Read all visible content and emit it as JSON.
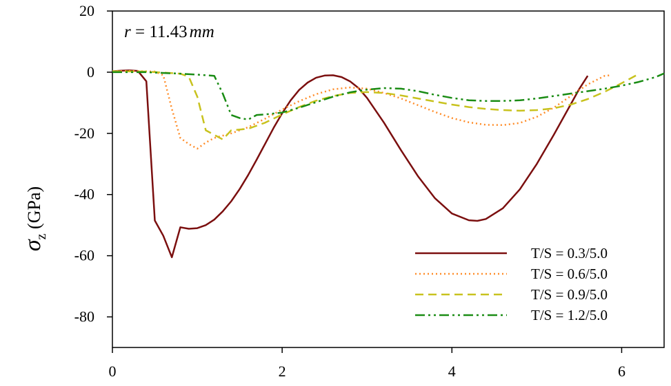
{
  "chart_data": {
    "type": "line",
    "title": "",
    "annotation": {
      "var": "r",
      "eq": " = 11.43",
      "unit": "mm"
    },
    "xlabel": "",
    "ylabel": {
      "symbol": "σ",
      "sub": "z",
      "unit": " (GPa)"
    },
    "xlim": [
      0,
      6.5
    ],
    "ylim": [
      -90,
      20
    ],
    "xticks": [
      0,
      2,
      4,
      6
    ],
    "yticks": [
      20,
      0,
      -20,
      -40,
      -60,
      -80
    ],
    "grid": false,
    "legend_position": "bottom-right",
    "series": [
      {
        "name": "T/S = 0.3/5.0",
        "color": "#7b0f0f",
        "dash": "solid",
        "points": [
          [
            0,
            0.3
          ],
          [
            0.1,
            0.5
          ],
          [
            0.2,
            0.6
          ],
          [
            0.3,
            0.4
          ],
          [
            0.4,
            -3
          ],
          [
            0.5,
            -48.5
          ],
          [
            0.6,
            -53.5
          ],
          [
            0.7,
            -60.5
          ],
          [
            0.8,
            -50.7
          ],
          [
            0.9,
            -51.2
          ],
          [
            1.0,
            -51
          ],
          [
            1.1,
            -50
          ],
          [
            1.2,
            -48.2
          ],
          [
            1.3,
            -45.5
          ],
          [
            1.4,
            -42.2
          ],
          [
            1.5,
            -38.2
          ],
          [
            1.6,
            -33.6
          ],
          [
            1.7,
            -28.6
          ],
          [
            1.8,
            -23.4
          ],
          [
            1.9,
            -18.2
          ],
          [
            2.0,
            -13.4
          ],
          [
            2.1,
            -9.2
          ],
          [
            2.2,
            -5.8
          ],
          [
            2.3,
            -3.4
          ],
          [
            2.4,
            -1.8
          ],
          [
            2.5,
            -1.1
          ],
          [
            2.6,
            -1
          ],
          [
            2.7,
            -1.6
          ],
          [
            2.8,
            -3
          ],
          [
            2.9,
            -5.2
          ],
          [
            3.0,
            -8.4
          ],
          [
            3.2,
            -16.5
          ],
          [
            3.4,
            -25.5
          ],
          [
            3.6,
            -34
          ],
          [
            3.8,
            -41.2
          ],
          [
            4.0,
            -46.2
          ],
          [
            4.2,
            -48.4
          ],
          [
            4.3,
            -48.6
          ],
          [
            4.4,
            -48
          ],
          [
            4.6,
            -44.5
          ],
          [
            4.8,
            -38.3
          ],
          [
            5.0,
            -30
          ],
          [
            5.2,
            -20.5
          ],
          [
            5.4,
            -10.5
          ],
          [
            5.5,
            -5.5
          ],
          [
            5.6,
            -1.2
          ]
        ]
      },
      {
        "name": "T/S = 0.6/5.0",
        "color": "#ff8c28",
        "dash": "dotted",
        "points": [
          [
            0,
            0.3
          ],
          [
            0.2,
            0.4
          ],
          [
            0.5,
            0.2
          ],
          [
            0.6,
            -1
          ],
          [
            0.7,
            -12
          ],
          [
            0.8,
            -21.5
          ],
          [
            0.9,
            -23.5
          ],
          [
            1.0,
            -25
          ],
          [
            1.1,
            -23
          ],
          [
            1.2,
            -21.5
          ],
          [
            1.4,
            -20
          ],
          [
            1.6,
            -18
          ],
          [
            1.8,
            -15.2
          ],
          [
            2.0,
            -12.2
          ],
          [
            2.2,
            -9.5
          ],
          [
            2.4,
            -7.2
          ],
          [
            2.6,
            -5.6
          ],
          [
            2.8,
            -5
          ],
          [
            3.0,
            -5.4
          ],
          [
            3.2,
            -6.8
          ],
          [
            3.4,
            -8.6
          ],
          [
            3.6,
            -10.8
          ],
          [
            3.8,
            -13
          ],
          [
            4.0,
            -15
          ],
          [
            4.2,
            -16.4
          ],
          [
            4.4,
            -17.2
          ],
          [
            4.6,
            -17.3
          ],
          [
            4.8,
            -16.6
          ],
          [
            5.0,
            -14.6
          ],
          [
            5.2,
            -11.6
          ],
          [
            5.4,
            -7.8
          ],
          [
            5.6,
            -4
          ],
          [
            5.8,
            -1.2
          ],
          [
            5.87,
            -1
          ]
        ]
      },
      {
        "name": "T/S = 0.9/5.0",
        "color": "#c8c21e",
        "dash": "dashed",
        "points": [
          [
            0,
            0.3
          ],
          [
            0.4,
            0.2
          ],
          [
            0.8,
            -0.5
          ],
          [
            0.9,
            -1.5
          ],
          [
            1.0,
            -8
          ],
          [
            1.1,
            -19
          ],
          [
            1.2,
            -20.5
          ],
          [
            1.3,
            -22
          ],
          [
            1.4,
            -19
          ],
          [
            1.6,
            -18.5
          ],
          [
            1.8,
            -16.5
          ],
          [
            2.0,
            -13.8
          ],
          [
            2.2,
            -11.4
          ],
          [
            2.4,
            -9.3
          ],
          [
            2.6,
            -7.8
          ],
          [
            2.8,
            -6.8
          ],
          [
            3.0,
            -6.5
          ],
          [
            3.2,
            -6.8
          ],
          [
            3.4,
            -7.6
          ],
          [
            3.6,
            -8.6
          ],
          [
            3.8,
            -9.6
          ],
          [
            4.0,
            -10.6
          ],
          [
            4.2,
            -11.4
          ],
          [
            4.4,
            -12
          ],
          [
            4.6,
            -12.4
          ],
          [
            4.8,
            -12.6
          ],
          [
            5.0,
            -12.4
          ],
          [
            5.2,
            -11.8
          ],
          [
            5.4,
            -10.6
          ],
          [
            5.6,
            -8.8
          ],
          [
            5.8,
            -6.4
          ],
          [
            6.0,
            -3.6
          ],
          [
            6.2,
            -0.6
          ]
        ]
      },
      {
        "name": "T/S = 1.2/5.0",
        "color": "#1a8c14",
        "dash": "dash-dot-dot",
        "points": [
          [
            0,
            0
          ],
          [
            0.4,
            0
          ],
          [
            0.8,
            -0.5
          ],
          [
            1.0,
            -0.8
          ],
          [
            1.2,
            -1.2
          ],
          [
            1.3,
            -7
          ],
          [
            1.4,
            -14
          ],
          [
            1.5,
            -15
          ],
          [
            1.6,
            -15.5
          ],
          [
            1.7,
            -14
          ],
          [
            1.8,
            -13.8
          ],
          [
            2.0,
            -13.2
          ],
          [
            2.2,
            -11.6
          ],
          [
            2.4,
            -9.8
          ],
          [
            2.6,
            -8
          ],
          [
            2.8,
            -6.6
          ],
          [
            3.0,
            -5.7
          ],
          [
            3.2,
            -5.2
          ],
          [
            3.4,
            -5.4
          ],
          [
            3.6,
            -6.2
          ],
          [
            3.8,
            -7.4
          ],
          [
            4.0,
            -8.4
          ],
          [
            4.2,
            -9.2
          ],
          [
            4.4,
            -9.4
          ],
          [
            4.6,
            -9.4
          ],
          [
            4.8,
            -9.2
          ],
          [
            5.0,
            -8.6
          ],
          [
            5.2,
            -7.8
          ],
          [
            5.4,
            -7
          ],
          [
            5.6,
            -6.2
          ],
          [
            5.8,
            -5.4
          ],
          [
            6.0,
            -4.4
          ],
          [
            6.2,
            -3.2
          ],
          [
            6.4,
            -1.6
          ],
          [
            6.5,
            -0.4
          ]
        ]
      }
    ]
  }
}
